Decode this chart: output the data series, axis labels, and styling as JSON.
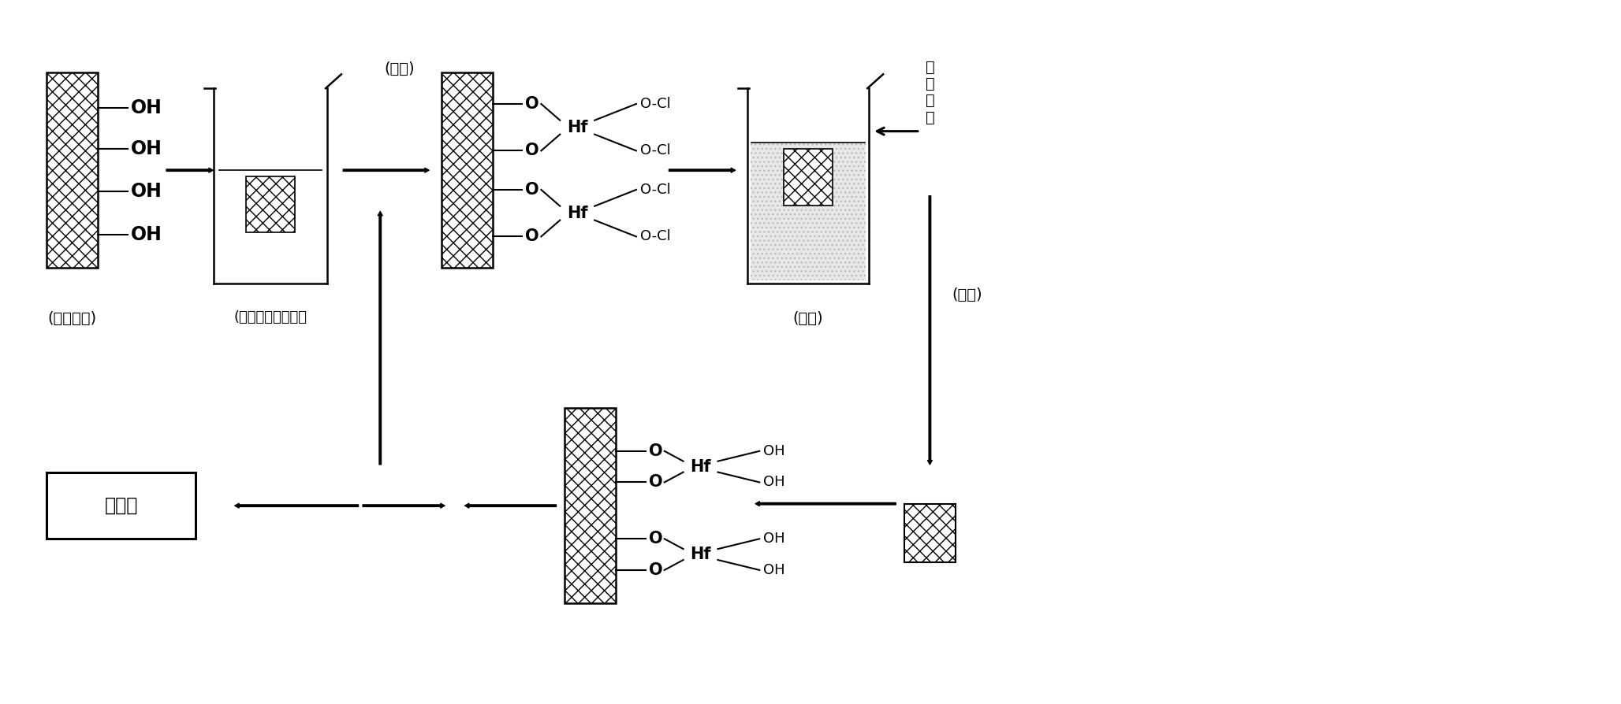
{
  "bg_color": "#ffffff",
  "fig_width": 20.56,
  "fig_height": 8.94,
  "step1_label": "(表面处理)",
  "step2_label": "(自限制化学吸附）",
  "step3_chongxi": "(冲洗)",
  "step4_label": "(水解)",
  "step5_label": "(吹干)",
  "step6_label": "热处理",
  "deiwater_label": "去\n离\n子\n水"
}
